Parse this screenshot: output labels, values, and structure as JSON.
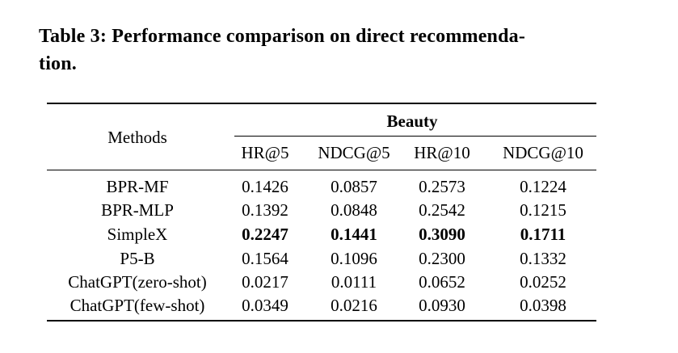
{
  "caption": {
    "line1": "Table 3: Performance comparison on direct recommenda-",
    "line2": "tion."
  },
  "table": {
    "row_header": "Methods",
    "group_header": "Beauty",
    "columns": [
      "HR@5",
      "NDCG@5",
      "HR@10",
      "NDCG@10"
    ],
    "rows": [
      {
        "method": "BPR-MF",
        "values": [
          "0.1426",
          "0.0857",
          "0.2573",
          "0.1224"
        ],
        "bold": false
      },
      {
        "method": "BPR-MLP",
        "values": [
          "0.1392",
          "0.0848",
          "0.2542",
          "0.1215"
        ],
        "bold": false
      },
      {
        "method": "SimpleX",
        "values": [
          "0.2247",
          "0.1441",
          "0.3090",
          "0.1711"
        ],
        "bold": true
      },
      {
        "method": "P5-B",
        "values": [
          "0.1564",
          "0.1096",
          "0.2300",
          "0.1332"
        ],
        "bold": false
      },
      {
        "method": "ChatGPT(zero-shot)",
        "values": [
          "0.0217",
          "0.0111",
          "0.0652",
          "0.0252"
        ],
        "bold": false
      },
      {
        "method": "ChatGPT(few-shot)",
        "values": [
          "0.0349",
          "0.0216",
          "0.0930",
          "0.0398"
        ],
        "bold": false
      }
    ]
  }
}
